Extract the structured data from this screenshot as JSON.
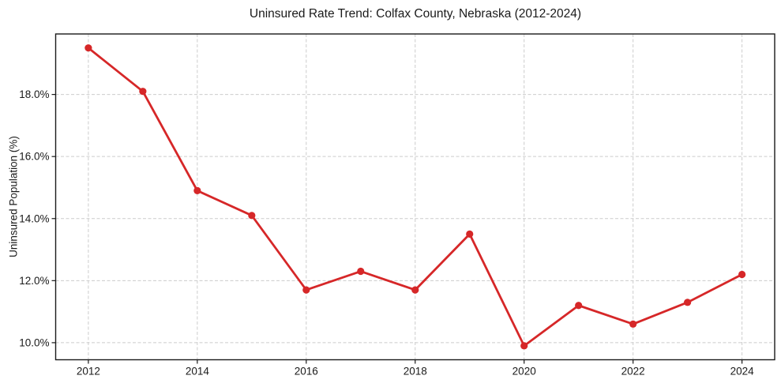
{
  "chart_data": {
    "type": "line",
    "title": "Uninsured Rate Trend: Colfax County, Nebraska (2012-2024)",
    "xlabel": "",
    "ylabel": "Uninsured Population (%)",
    "x": [
      2012,
      2013,
      2014,
      2015,
      2016,
      2017,
      2018,
      2019,
      2020,
      2021,
      2022,
      2023,
      2024
    ],
    "values": [
      19.5,
      18.1,
      14.9,
      14.1,
      11.7,
      12.3,
      11.7,
      13.5,
      9.9,
      11.2,
      10.6,
      11.3,
      12.2
    ],
    "xlim": [
      2011.4,
      2024.6
    ],
    "ylim": [
      9.45,
      19.95
    ],
    "xticks": {
      "values": [
        2012,
        2014,
        2016,
        2018,
        2020,
        2022,
        2024
      ],
      "labels": [
        "2012",
        "2014",
        "2016",
        "2018",
        "2020",
        "2022",
        "2024"
      ]
    },
    "yticks": {
      "values": [
        10,
        12,
        14,
        16,
        18
      ],
      "labels": [
        "10.0%",
        "12.0%",
        "14.0%",
        "16.0%",
        "18.0%"
      ]
    },
    "grid": true,
    "legend": "none",
    "marker": "circle",
    "colors": {
      "line": "#d62728",
      "marker": "#d62728",
      "grid": "#cccccc",
      "axis": "#1a1a1a",
      "tick_text": "#1a1a1a",
      "background": "#ffffff"
    }
  }
}
